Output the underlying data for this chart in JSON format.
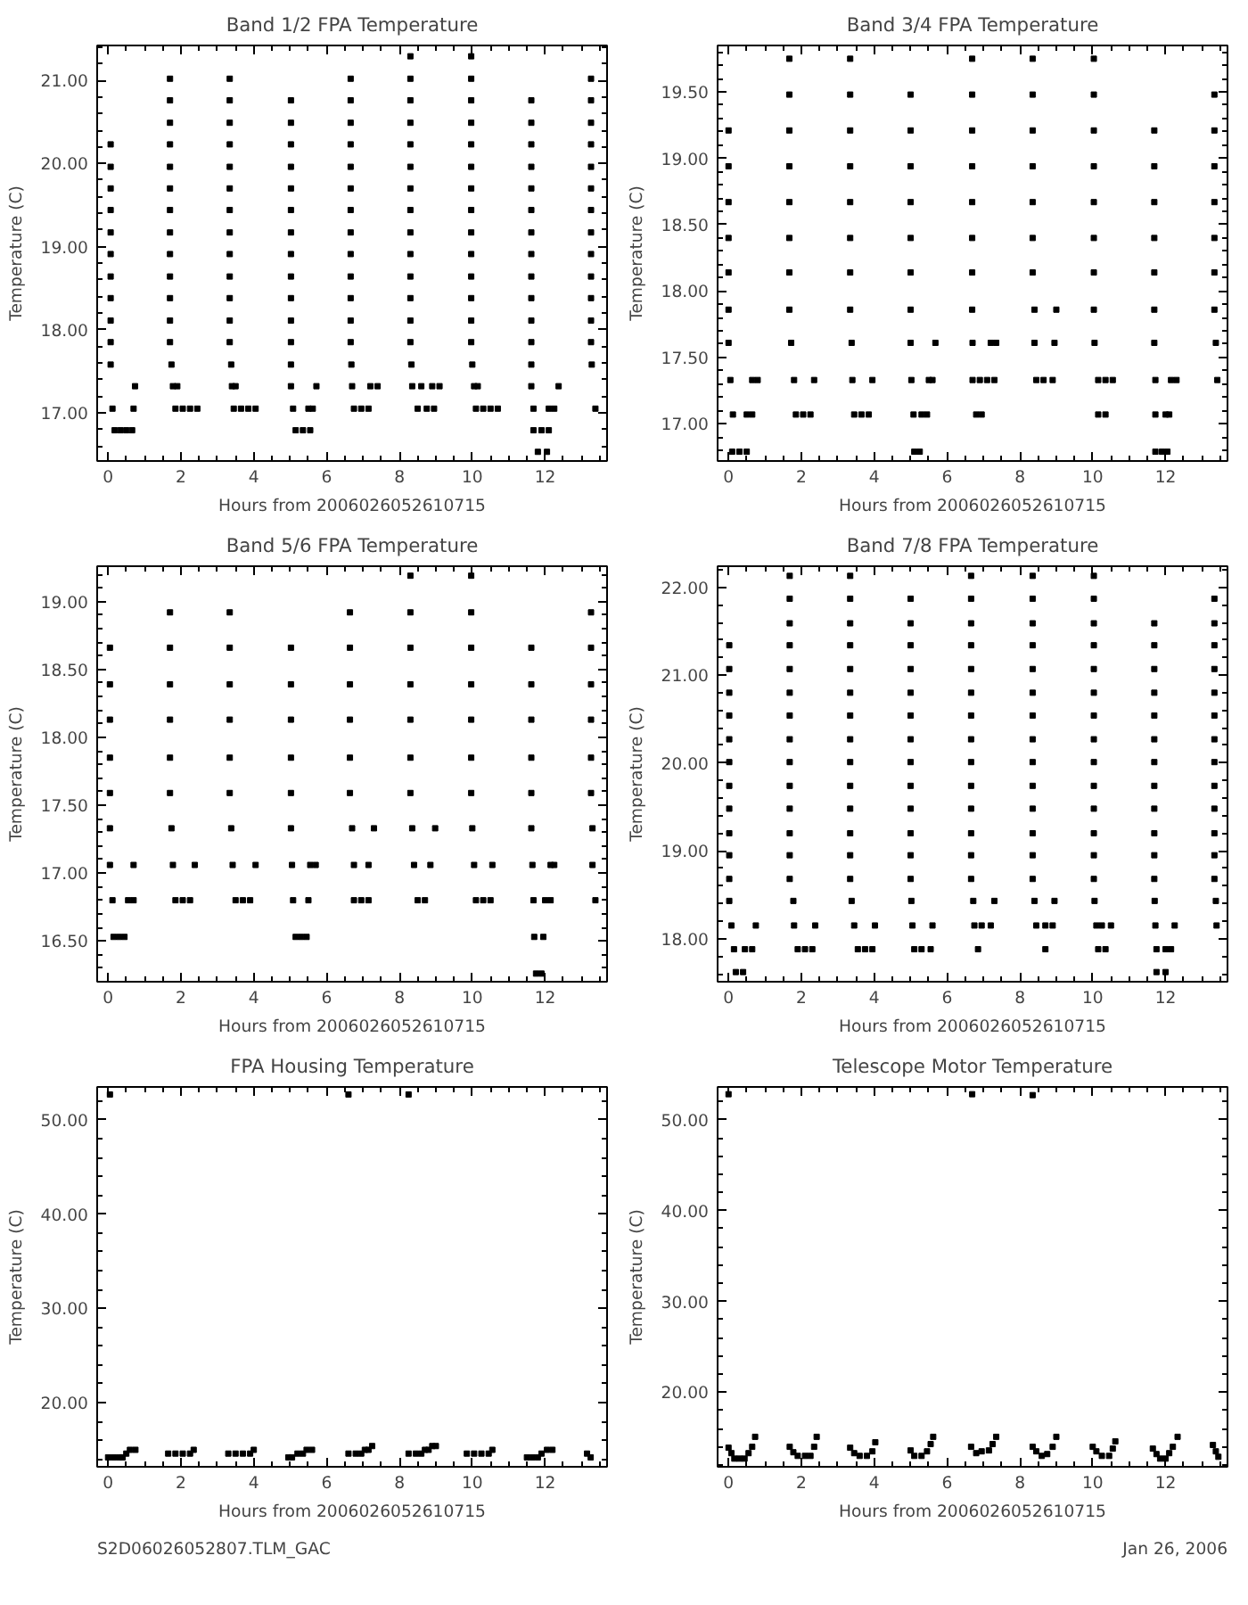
{
  "chart_data": [
    {
      "type": "scatter",
      "title": "Band 1/2 FPA Temperature",
      "xlabel": "Hours from 2006026052610715",
      "ylabel": "Temperature (C)",
      "xlim": [
        -0.3,
        13.7
      ],
      "ylim": [
        16.42,
        21.42
      ],
      "xticks": [
        0,
        2,
        4,
        6,
        8,
        10,
        12
      ],
      "yticks": [
        {
          "value": 17,
          "label": "17.00"
        },
        {
          "value": 18,
          "label": "18.00"
        },
        {
          "value": 19,
          "label": "19.00"
        },
        {
          "value": 20,
          "label": "20.00"
        },
        {
          "value": 21,
          "label": "21.00"
        }
      ],
      "grid": false,
      "marker": "square",
      "series": [
        {
          "color": "#000000",
          "x": [
            0.07,
            0.07,
            0.07,
            0.07,
            0.07,
            0.07,
            0.07,
            0.07,
            0.07,
            0.07,
            0.07,
            0.12,
            0.18,
            0.34,
            0.5,
            0.66,
            0.7,
            0.74
          ],
          "values": [
            20.23,
            19.96,
            19.7,
            19.44,
            19.17,
            18.91,
            18.64,
            18.38,
            18.11,
            17.85,
            17.58,
            17.05,
            16.79,
            16.79,
            16.79,
            16.79,
            17.05,
            17.32
          ]
        },
        {
          "color": "#000000",
          "x": [
            1.7,
            1.7,
            1.7,
            1.7,
            1.7,
            1.7,
            1.7,
            1.7,
            1.7,
            1.7,
            1.7,
            1.7,
            1.7,
            1.74,
            1.78,
            1.9,
            1.85,
            2.05,
            2.25,
            2.45
          ],
          "values": [
            21.02,
            20.76,
            20.49,
            20.23,
            19.96,
            19.7,
            19.44,
            19.17,
            18.91,
            18.64,
            18.38,
            18.11,
            17.85,
            17.58,
            17.32,
            17.32,
            17.05,
            17.05,
            17.05,
            17.05
          ]
        },
        {
          "color": "#000000",
          "x": [
            3.34,
            3.34,
            3.34,
            3.34,
            3.34,
            3.34,
            3.34,
            3.34,
            3.34,
            3.34,
            3.34,
            3.34,
            3.34,
            3.38,
            3.4,
            3.5,
            3.45,
            3.65,
            3.85,
            4.05
          ],
          "values": [
            21.02,
            20.76,
            20.49,
            20.23,
            19.96,
            19.7,
            19.44,
            19.17,
            18.91,
            18.64,
            18.38,
            18.11,
            17.85,
            17.58,
            17.32,
            17.32,
            17.05,
            17.05,
            17.05,
            17.05
          ]
        },
        {
          "color": "#000000",
          "x": [
            5.02,
            5.02,
            5.02,
            5.02,
            5.02,
            5.02,
            5.02,
            5.02,
            5.02,
            5.02,
            5.02,
            5.02,
            5.02,
            5.02,
            5.08,
            5.15,
            5.35,
            5.55,
            5.5,
            5.62,
            5.72
          ],
          "values": [
            20.76,
            20.49,
            20.23,
            19.96,
            19.7,
            19.44,
            19.17,
            18.91,
            18.64,
            18.38,
            18.11,
            17.85,
            17.58,
            17.32,
            17.05,
            16.79,
            16.79,
            16.79,
            17.05,
            17.05,
            17.32
          ]
        },
        {
          "color": "#000000",
          "x": [
            6.66,
            6.66,
            6.66,
            6.66,
            6.66,
            6.66,
            6.66,
            6.66,
            6.66,
            6.66,
            6.66,
            6.66,
            6.66,
            6.68,
            6.7,
            6.75,
            6.95,
            7.15,
            7.2,
            7.4
          ],
          "values": [
            21.02,
            20.76,
            20.49,
            20.23,
            19.96,
            19.7,
            19.44,
            19.17,
            18.91,
            18.64,
            18.38,
            18.11,
            17.85,
            17.58,
            17.32,
            17.05,
            17.05,
            17.05,
            17.32,
            17.32
          ]
        },
        {
          "color": "#000000",
          "x": [
            8.3,
            8.3,
            8.3,
            8.3,
            8.3,
            8.3,
            8.3,
            8.3,
            8.3,
            8.3,
            8.3,
            8.3,
            8.3,
            8.3,
            8.33,
            8.35,
            8.6,
            8.5,
            8.75,
            8.95,
            8.9,
            9.1
          ],
          "values": [
            21.29,
            21.02,
            20.76,
            20.49,
            20.23,
            19.96,
            19.7,
            19.44,
            19.17,
            18.91,
            18.64,
            18.38,
            18.11,
            17.85,
            17.58,
            17.32,
            17.32,
            17.05,
            17.05,
            17.05,
            17.32,
            17.32
          ]
        },
        {
          "color": "#000000",
          "x": [
            9.97,
            9.97,
            9.97,
            9.97,
            9.97,
            9.97,
            9.97,
            9.97,
            9.97,
            9.97,
            9.97,
            9.97,
            9.97,
            9.97,
            10.0,
            10.05,
            10.15,
            10.1,
            10.3,
            10.5,
            10.7
          ],
          "values": [
            21.29,
            21.02,
            20.76,
            20.49,
            20.23,
            19.96,
            19.7,
            19.44,
            19.17,
            18.91,
            18.64,
            18.38,
            18.11,
            17.85,
            17.58,
            17.32,
            17.32,
            17.05,
            17.05,
            17.05,
            17.05
          ]
        },
        {
          "color": "#000000",
          "x": [
            11.62,
            11.62,
            11.62,
            11.62,
            11.62,
            11.62,
            11.62,
            11.62,
            11.62,
            11.62,
            11.62,
            11.62,
            11.62,
            11.62,
            11.68,
            11.68,
            11.9,
            12.1,
            11.8,
            12.05,
            12.1,
            12.25,
            12.37
          ],
          "values": [
            20.76,
            20.49,
            20.23,
            19.96,
            19.7,
            19.44,
            19.17,
            18.91,
            18.64,
            18.38,
            18.11,
            17.85,
            17.58,
            17.32,
            17.05,
            16.79,
            16.79,
            16.79,
            16.53,
            16.53,
            17.05,
            17.05,
            17.32
          ]
        },
        {
          "color": "#000000",
          "x": [
            13.26,
            13.26,
            13.26,
            13.26,
            13.26,
            13.26,
            13.26,
            13.26,
            13.26,
            13.26,
            13.26,
            13.26,
            13.26,
            13.28,
            13.38
          ],
          "values": [
            21.02,
            20.76,
            20.49,
            20.23,
            19.96,
            19.7,
            19.44,
            19.17,
            18.91,
            18.64,
            18.38,
            18.11,
            17.85,
            17.58,
            17.05
          ]
        }
      ]
    },
    {
      "type": "scatter",
      "title": "Band 3/4 FPA Temperature",
      "xlabel": "Hours from 2006026052610715",
      "ylabel": "Temperature (C)",
      "xlim": [
        -0.3,
        13.7
      ],
      "ylim": [
        16.72,
        19.85
      ],
      "xticks": [
        0,
        2,
        4,
        6,
        8,
        10,
        12
      ],
      "yticks": [
        {
          "value": 17,
          "label": "17.00"
        },
        {
          "value": 17.5,
          "label": "17.50"
        },
        {
          "value": 18,
          "label": "18.00"
        },
        {
          "value": 18.5,
          "label": "18.50"
        },
        {
          "value": 19,
          "label": "19.00"
        },
        {
          "value": 19.5,
          "label": "19.50"
        }
      ],
      "grid": false,
      "marker": "square",
      "series": [
        {
          "color": "#000000",
          "x": [
            0.0,
            0.0,
            0.0,
            0.0,
            0.0,
            0.0,
            0.0,
            0.05,
            0.12,
            0.1,
            0.3,
            0.5,
            0.5,
            0.65,
            0.65,
            0.8
          ],
          "values": [
            19.21,
            18.94,
            18.67,
            18.4,
            18.14,
            17.86,
            17.61,
            17.33,
            17.07,
            16.79,
            16.79,
            16.79,
            17.07,
            17.07,
            17.33,
            17.33
          ]
        },
        {
          "color": "#000000",
          "x": [
            1.67,
            1.67,
            1.67,
            1.67,
            1.67,
            1.67,
            1.67,
            1.67,
            1.72,
            1.8,
            1.85,
            2.05,
            2.25,
            2.35
          ],
          "values": [
            19.75,
            19.48,
            19.21,
            18.94,
            18.67,
            18.4,
            18.14,
            17.86,
            17.61,
            17.33,
            17.07,
            17.07,
            17.07,
            17.33
          ]
        },
        {
          "color": "#000000",
          "x": [
            3.34,
            3.34,
            3.34,
            3.34,
            3.34,
            3.34,
            3.34,
            3.34,
            3.38,
            3.4,
            3.45,
            3.65,
            3.85,
            3.95
          ],
          "values": [
            19.75,
            19.48,
            19.21,
            18.94,
            18.67,
            18.4,
            18.14,
            17.86,
            17.61,
            17.33,
            17.07,
            17.07,
            17.07,
            17.33
          ]
        },
        {
          "color": "#000000",
          "x": [
            5.0,
            5.0,
            5.0,
            5.0,
            5.0,
            5.0,
            5.0,
            5.0,
            5.02,
            5.08,
            5.1,
            5.25,
            5.3,
            5.45,
            5.5,
            5.6,
            5.68
          ],
          "values": [
            19.48,
            19.21,
            18.94,
            18.67,
            18.4,
            18.14,
            17.86,
            17.61,
            17.33,
            17.07,
            16.79,
            16.79,
            17.07,
            17.07,
            17.33,
            17.33,
            17.61
          ]
        },
        {
          "color": "#000000",
          "x": [
            6.69,
            6.69,
            6.69,
            6.69,
            6.69,
            6.69,
            6.69,
            6.69,
            6.7,
            6.7,
            6.9,
            7.1,
            7.3,
            6.8,
            6.95,
            7.2,
            7.35
          ],
          "values": [
            19.75,
            19.48,
            19.21,
            18.94,
            18.67,
            18.4,
            18.14,
            17.86,
            17.61,
            17.33,
            17.33,
            17.33,
            17.33,
            17.07,
            17.07,
            17.61,
            17.61
          ]
        },
        {
          "color": "#000000",
          "x": [
            8.35,
            8.35,
            8.35,
            8.35,
            8.35,
            8.35,
            8.35,
            8.4,
            8.4,
            8.45,
            8.65,
            8.9,
            8.95,
            9.0
          ],
          "values": [
            19.75,
            19.48,
            19.21,
            18.94,
            18.67,
            18.4,
            18.14,
            17.86,
            17.61,
            17.33,
            17.33,
            17.33,
            17.61,
            17.86
          ]
        },
        {
          "color": "#000000",
          "x": [
            10.03,
            10.03,
            10.03,
            10.03,
            10.03,
            10.03,
            10.03,
            10.03,
            10.05,
            10.15,
            10.35,
            10.55,
            10.15,
            10.35
          ],
          "values": [
            19.75,
            19.48,
            19.21,
            18.94,
            18.67,
            18.4,
            18.14,
            17.86,
            17.61,
            17.33,
            17.33,
            17.33,
            17.07,
            17.07
          ]
        },
        {
          "color": "#000000",
          "x": [
            11.69,
            11.69,
            11.69,
            11.69,
            11.69,
            11.69,
            11.69,
            11.72,
            11.72,
            11.72,
            11.9,
            12.05,
            12.0,
            12.1,
            12.15,
            12.3
          ],
          "values": [
            19.21,
            18.94,
            18.67,
            18.4,
            18.14,
            17.86,
            17.61,
            17.33,
            17.07,
            16.79,
            16.79,
            16.79,
            17.07,
            17.07,
            17.33,
            17.33
          ]
        },
        {
          "color": "#000000",
          "x": [
            13.34,
            13.34,
            13.34,
            13.34,
            13.34,
            13.34,
            13.34,
            13.38,
            13.42
          ],
          "values": [
            19.48,
            19.21,
            18.94,
            18.67,
            18.4,
            18.14,
            17.86,
            17.61,
            17.33
          ]
        }
      ]
    },
    {
      "type": "scatter",
      "title": "Band 5/6 FPA Temperature",
      "xlabel": "Hours from 2006026052610715",
      "ylabel": "Temperature (C)",
      "xlim": [
        -0.3,
        13.7
      ],
      "ylim": [
        16.2,
        19.26
      ],
      "xticks": [
        0,
        2,
        4,
        6,
        8,
        10,
        12
      ],
      "yticks": [
        {
          "value": 16.5,
          "label": "16.50"
        },
        {
          "value": 17,
          "label": "17.00"
        },
        {
          "value": 17.5,
          "label": "17.50"
        },
        {
          "value": 18,
          "label": "18.00"
        },
        {
          "value": 18.5,
          "label": "18.50"
        },
        {
          "value": 19,
          "label": "19.00"
        }
      ],
      "grid": false,
      "marker": "square",
      "series": [
        {
          "color": "#000000",
          "x": [
            0.05,
            0.05,
            0.05,
            0.05,
            0.05,
            0.05,
            0.05,
            0.12,
            0.15,
            0.3,
            0.45,
            0.55,
            0.7,
            0.7
          ],
          "values": [
            18.66,
            18.39,
            18.13,
            17.85,
            17.59,
            17.33,
            17.06,
            16.8,
            16.53,
            16.53,
            16.53,
            16.8,
            16.8,
            17.06
          ]
        },
        {
          "color": "#000000",
          "x": [
            1.7,
            1.7,
            1.7,
            1.7,
            1.7,
            1.7,
            1.74,
            1.78,
            1.85,
            2.05,
            2.25,
            2.38
          ],
          "values": [
            18.92,
            18.66,
            18.39,
            18.13,
            17.85,
            17.59,
            17.33,
            17.06,
            16.8,
            16.8,
            16.8,
            17.06
          ]
        },
        {
          "color": "#000000",
          "x": [
            3.34,
            3.34,
            3.34,
            3.34,
            3.34,
            3.34,
            3.38,
            3.42,
            3.5,
            3.7,
            3.9,
            4.05
          ],
          "values": [
            18.92,
            18.66,
            18.39,
            18.13,
            17.85,
            17.59,
            17.33,
            17.06,
            16.8,
            16.8,
            16.8,
            17.06
          ]
        },
        {
          "color": "#000000",
          "x": [
            5.02,
            5.02,
            5.02,
            5.02,
            5.02,
            5.02,
            5.05,
            5.08,
            5.15,
            5.3,
            5.45,
            5.5,
            5.55,
            5.7
          ],
          "values": [
            18.66,
            18.39,
            18.13,
            17.85,
            17.59,
            17.33,
            17.06,
            16.8,
            16.53,
            16.53,
            16.53,
            16.8,
            17.06,
            17.06
          ]
        },
        {
          "color": "#000000",
          "x": [
            6.64,
            6.64,
            6.64,
            6.64,
            6.64,
            6.64,
            6.7,
            6.75,
            6.75,
            6.95,
            7.15,
            7.15,
            7.3
          ],
          "values": [
            18.92,
            18.66,
            18.39,
            18.13,
            17.85,
            17.59,
            17.33,
            17.06,
            16.8,
            16.8,
            16.8,
            17.06,
            17.33
          ]
        },
        {
          "color": "#000000",
          "x": [
            8.3,
            8.3,
            8.3,
            8.3,
            8.3,
            8.3,
            8.3,
            8.35,
            8.4,
            8.5,
            8.7,
            8.85,
            8.98
          ],
          "values": [
            19.19,
            18.92,
            18.66,
            18.39,
            18.13,
            17.85,
            17.59,
            17.33,
            17.06,
            16.8,
            16.8,
            17.06,
            17.33
          ]
        },
        {
          "color": "#000000",
          "x": [
            9.97,
            9.97,
            9.97,
            9.97,
            9.97,
            9.97,
            9.97,
            10.0,
            10.05,
            10.1,
            10.3,
            10.5,
            10.55
          ],
          "values": [
            19.19,
            18.92,
            18.66,
            18.39,
            18.13,
            17.85,
            17.59,
            17.33,
            17.06,
            16.8,
            16.8,
            16.8,
            17.06
          ]
        },
        {
          "color": "#000000",
          "x": [
            11.62,
            11.62,
            11.62,
            11.62,
            11.62,
            11.62,
            11.65,
            11.68,
            11.7,
            11.75,
            11.9,
            11.95,
            12.0,
            12.15,
            12.15,
            12.25
          ],
          "values": [
            18.66,
            18.39,
            18.13,
            17.85,
            17.59,
            17.33,
            17.06,
            16.8,
            16.53,
            16.26,
            16.26,
            16.53,
            16.8,
            16.8,
            17.06,
            17.06
          ]
        },
        {
          "color": "#000000",
          "x": [
            13.26,
            13.26,
            13.26,
            13.26,
            13.26,
            13.26,
            13.3,
            13.3,
            13.38
          ],
          "values": [
            18.92,
            18.66,
            18.39,
            18.13,
            17.85,
            17.59,
            17.33,
            17.06,
            16.8
          ]
        }
      ]
    },
    {
      "type": "scatter",
      "title": "Band 7/8 FPA Temperature",
      "xlabel": "Hours from 2006026052610715",
      "ylabel": "Temperature (C)",
      "xlim": [
        -0.3,
        13.7
      ],
      "ylim": [
        17.51,
        22.24
      ],
      "xticks": [
        0,
        2,
        4,
        6,
        8,
        10,
        12
      ],
      "yticks": [
        {
          "value": 18,
          "label": "18.00"
        },
        {
          "value": 19,
          "label": "19.00"
        },
        {
          "value": 20,
          "label": "20.00"
        },
        {
          "value": 21,
          "label": "21.00"
        },
        {
          "value": 22,
          "label": "22.00"
        }
      ],
      "grid": false,
      "marker": "square",
      "series": [
        {
          "color": "#000000",
          "x": [
            0.02,
            0.02,
            0.02,
            0.02,
            0.02,
            0.02,
            0.02,
            0.02,
            0.02,
            0.02,
            0.02,
            0.02,
            0.08,
            0.15,
            0.2,
            0.4,
            0.45,
            0.65,
            0.75
          ],
          "values": [
            21.34,
            21.07,
            20.8,
            20.54,
            20.27,
            20.01,
            19.74,
            19.48,
            19.2,
            18.95,
            18.68,
            18.43,
            18.15,
            17.88,
            17.62,
            17.62,
            17.88,
            17.88,
            18.15
          ]
        },
        {
          "color": "#000000",
          "x": [
            1.68,
            1.68,
            1.68,
            1.68,
            1.68,
            1.68,
            1.68,
            1.68,
            1.68,
            1.68,
            1.68,
            1.68,
            1.68,
            1.68,
            1.78,
            1.8,
            1.9,
            2.1,
            2.3,
            2.38
          ],
          "values": [
            22.13,
            21.87,
            21.59,
            21.34,
            21.07,
            20.8,
            20.54,
            20.27,
            20.01,
            19.74,
            19.48,
            19.2,
            18.95,
            18.68,
            18.43,
            18.15,
            17.88,
            17.88,
            17.88,
            18.15
          ]
        },
        {
          "color": "#000000",
          "x": [
            3.34,
            3.34,
            3.34,
            3.34,
            3.34,
            3.34,
            3.34,
            3.34,
            3.34,
            3.34,
            3.34,
            3.34,
            3.34,
            3.34,
            3.38,
            3.45,
            3.55,
            3.75,
            3.95,
            4.02
          ],
          "values": [
            22.13,
            21.87,
            21.59,
            21.34,
            21.07,
            20.8,
            20.54,
            20.27,
            20.01,
            19.74,
            19.48,
            19.2,
            18.95,
            18.68,
            18.43,
            18.15,
            17.88,
            17.88,
            17.88,
            18.15
          ]
        },
        {
          "color": "#000000",
          "x": [
            5.0,
            5.0,
            5.0,
            5.0,
            5.0,
            5.0,
            5.0,
            5.0,
            5.0,
            5.0,
            5.0,
            5.0,
            5.0,
            5.02,
            5.05,
            5.1,
            5.3,
            5.55,
            5.6
          ],
          "values": [
            21.87,
            21.59,
            21.34,
            21.07,
            20.8,
            20.54,
            20.27,
            20.01,
            19.74,
            19.48,
            19.2,
            18.95,
            18.68,
            18.43,
            18.15,
            17.88,
            17.88,
            17.88,
            18.15
          ]
        },
        {
          "color": "#000000",
          "x": [
            6.66,
            6.66,
            6.66,
            6.66,
            6.66,
            6.66,
            6.66,
            6.66,
            6.66,
            6.66,
            6.66,
            6.66,
            6.66,
            6.66,
            6.72,
            6.75,
            6.95,
            7.2,
            6.85,
            7.3
          ],
          "values": [
            22.13,
            21.87,
            21.59,
            21.34,
            21.07,
            20.8,
            20.54,
            20.27,
            20.01,
            19.74,
            19.48,
            19.2,
            18.95,
            18.68,
            18.43,
            18.15,
            18.15,
            18.15,
            17.88,
            18.43
          ]
        },
        {
          "color": "#000000",
          "x": [
            8.35,
            8.35,
            8.35,
            8.35,
            8.35,
            8.35,
            8.35,
            8.35,
            8.35,
            8.35,
            8.35,
            8.35,
            8.35,
            8.35,
            8.4,
            8.45,
            8.7,
            8.9,
            8.7,
            8.95
          ],
          "values": [
            22.13,
            21.87,
            21.59,
            21.34,
            21.07,
            20.8,
            20.54,
            20.27,
            20.01,
            19.74,
            19.48,
            19.2,
            18.95,
            18.68,
            18.43,
            18.15,
            18.15,
            18.15,
            17.88,
            18.43
          ]
        },
        {
          "color": "#000000",
          "x": [
            10.03,
            10.03,
            10.03,
            10.03,
            10.03,
            10.03,
            10.03,
            10.03,
            10.03,
            10.03,
            10.03,
            10.03,
            10.03,
            10.03,
            10.05,
            10.1,
            10.25,
            10.15,
            10.35,
            10.5
          ],
          "values": [
            22.13,
            21.87,
            21.59,
            21.34,
            21.07,
            20.8,
            20.54,
            20.27,
            20.01,
            19.74,
            19.48,
            19.2,
            18.95,
            18.68,
            18.43,
            18.15,
            18.15,
            17.88,
            17.88,
            18.15
          ]
        },
        {
          "color": "#000000",
          "x": [
            11.69,
            11.69,
            11.69,
            11.69,
            11.69,
            11.69,
            11.69,
            11.69,
            11.69,
            11.69,
            11.69,
            11.69,
            11.7,
            11.72,
            11.75,
            11.75,
            12.0,
            12.0,
            12.15,
            12.25
          ],
          "values": [
            21.59,
            21.34,
            21.07,
            20.8,
            20.54,
            20.27,
            20.01,
            19.74,
            19.48,
            19.2,
            18.95,
            18.68,
            18.43,
            18.15,
            17.88,
            17.62,
            17.62,
            17.88,
            17.88,
            18.15
          ]
        },
        {
          "color": "#000000",
          "x": [
            13.34,
            13.34,
            13.34,
            13.34,
            13.34,
            13.34,
            13.34,
            13.34,
            13.34,
            13.34,
            13.34,
            13.34,
            13.34,
            13.38,
            13.4
          ],
          "values": [
            21.87,
            21.59,
            21.34,
            21.07,
            20.8,
            20.54,
            20.27,
            20.01,
            19.74,
            19.48,
            19.2,
            18.95,
            18.68,
            18.43,
            18.15
          ]
        }
      ]
    },
    {
      "type": "scatter",
      "title": "FPA Housing Temperature",
      "xlabel": "Hours from 2006026052610715",
      "ylabel": "Temperature (C)",
      "xlim": [
        -0.3,
        13.7
      ],
      "ylim": [
        13.2,
        53.5
      ],
      "xticks": [
        0,
        2,
        4,
        6,
        8,
        10,
        12
      ],
      "yticks": [
        {
          "value": 20,
          "label": "20.00"
        },
        {
          "value": 30,
          "label": "30.00"
        },
        {
          "value": 40,
          "label": "40.00"
        },
        {
          "value": 50,
          "label": "50.00"
        }
      ],
      "grid": false,
      "marker": "square",
      "annotations": [
        "S2D06026052807.TLM_GAC"
      ],
      "series": [
        {
          "color": "#000000",
          "x": [
            0.0,
            0.15,
            0.3,
            0.4,
            0.5,
            0.6,
            0.75,
            1.65,
            1.85,
            2.05,
            2.25,
            2.35,
            3.3,
            3.5,
            3.7,
            3.9,
            4.0,
            4.95,
            5.05,
            5.2,
            5.35,
            5.45,
            5.6,
            6.6,
            6.8,
            6.95,
            7.05,
            7.15,
            7.25,
            8.25,
            8.45,
            8.6,
            8.7,
            8.8,
            8.9,
            9.0,
            9.85,
            10.05,
            10.25,
            10.45,
            10.55,
            11.5,
            11.65,
            11.8,
            11.9,
            12.05,
            12.2,
            13.15,
            13.25,
            0.05,
            6.6,
            8.25
          ],
          "values": [
            14.2,
            14.2,
            14.2,
            14.2,
            14.6,
            15.0,
            15.0,
            14.6,
            14.6,
            14.6,
            14.6,
            15.0,
            14.6,
            14.6,
            14.6,
            14.6,
            15.0,
            14.2,
            14.2,
            14.6,
            14.6,
            15.0,
            15.0,
            14.6,
            14.6,
            14.6,
            15.0,
            15.0,
            15.4,
            14.6,
            14.6,
            14.6,
            15.0,
            15.0,
            15.4,
            15.4,
            14.6,
            14.6,
            14.6,
            14.6,
            15.0,
            14.2,
            14.2,
            14.2,
            14.6,
            15.0,
            15.0,
            14.6,
            14.2,
            52.7,
            52.7,
            52.7
          ]
        }
      ]
    },
    {
      "type": "scatter",
      "title": "Telescope Motor Temperature",
      "xlabel": "Hours from 2006026052610715",
      "ylabel": "Temperature (C)",
      "xlim": [
        -0.3,
        13.7
      ],
      "ylim": [
        11.8,
        53.6
      ],
      "xticks": [
        0,
        2,
        4,
        6,
        8,
        10,
        12
      ],
      "yticks": [
        {
          "value": 20,
          "label": "20.00"
        },
        {
          "value": 30,
          "label": "30.00"
        },
        {
          "value": 40,
          "label": "40.00"
        },
        {
          "value": 50,
          "label": "50.00"
        }
      ],
      "grid": false,
      "marker": "square",
      "annotations": [
        "Jan 26, 2006"
      ],
      "series": [
        {
          "color": "#000000",
          "x": [
            0.0,
            0.08,
            0.16,
            0.3,
            0.44,
            0.55,
            0.65,
            0.73,
            1.68,
            1.78,
            1.9,
            2.1,
            2.25,
            2.35,
            2.42,
            3.34,
            3.45,
            3.6,
            3.8,
            3.95,
            4.03,
            5.0,
            5.1,
            5.3,
            5.45,
            5.55,
            5.62,
            6.66,
            6.8,
            6.95,
            7.15,
            7.25,
            7.35,
            8.35,
            8.45,
            8.6,
            8.75,
            8.9,
            9.0,
            10.0,
            10.1,
            10.25,
            10.45,
            10.55,
            10.62,
            11.65,
            11.75,
            11.85,
            12.0,
            12.1,
            12.2,
            12.33,
            13.3,
            13.38,
            13.45,
            0.0,
            6.69,
            8.35
          ],
          "values": [
            13.9,
            13.3,
            12.7,
            12.7,
            12.7,
            13.3,
            14.0,
            15.1,
            14.0,
            13.4,
            13.0,
            13.0,
            13.0,
            14.0,
            15.1,
            13.9,
            13.3,
            13.0,
            13.0,
            13.5,
            14.5,
            13.6,
            13.0,
            13.0,
            13.5,
            14.3,
            15.1,
            14.0,
            13.3,
            13.5,
            13.6,
            14.3,
            15.1,
            14.0,
            13.5,
            13.0,
            13.2,
            14.0,
            15.1,
            14.0,
            13.5,
            13.0,
            13.0,
            13.8,
            14.6,
            13.8,
            13.2,
            12.7,
            12.7,
            13.3,
            14.0,
            15.1,
            14.2,
            13.5,
            12.9,
            52.8,
            52.8,
            52.7
          ]
        }
      ]
    }
  ]
}
